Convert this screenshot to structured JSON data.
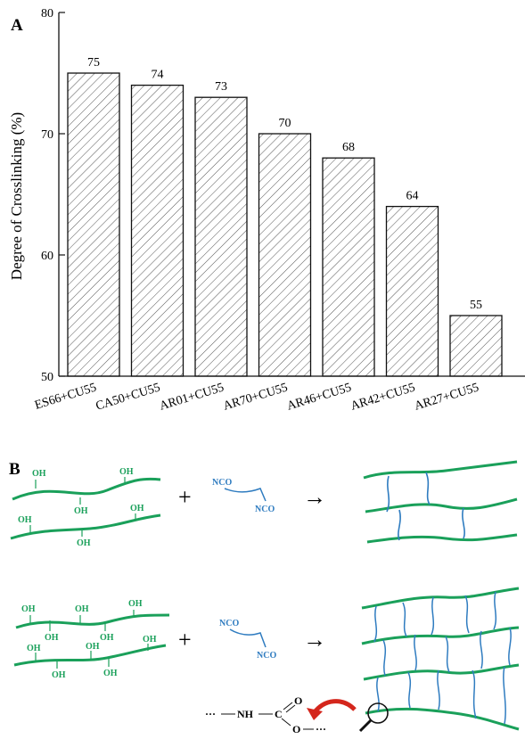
{
  "panels": {
    "a": "A",
    "b": "B"
  },
  "chart_data": {
    "type": "bar",
    "categories": [
      "ES66+CU55",
      "CA50+CU55",
      "AR01+CU55",
      "AR70+CU55",
      "AR46+CU55",
      "AR42+CU55",
      "AR27+CU55"
    ],
    "values": [
      75,
      74,
      73,
      70,
      68,
      64,
      55
    ],
    "value_labels": [
      "75",
      "74",
      "73",
      "70",
      "68",
      "64",
      "55"
    ],
    "title": "",
    "xlabel": "",
    "ylabel": "Degree of Crosslinking (%)",
    "ylim": [
      50,
      80
    ],
    "yticks": [
      "50",
      "60",
      "70",
      "80"
    ],
    "bar_fill": "hatched",
    "grid": false
  },
  "scheme": {
    "hydroxyl": "OH",
    "isocyanate": "NCO",
    "plus": "+",
    "arrow": "→",
    "urethane": {
      "lead": "···",
      "nh": "NH",
      "c": "C",
      "o_top": "O",
      "o_bottom": "O",
      "tail": "···"
    },
    "colors": {
      "polyol": "#1aa05a",
      "isocyanate": "#2f7cc0",
      "arrow": "#d4261c"
    }
  }
}
